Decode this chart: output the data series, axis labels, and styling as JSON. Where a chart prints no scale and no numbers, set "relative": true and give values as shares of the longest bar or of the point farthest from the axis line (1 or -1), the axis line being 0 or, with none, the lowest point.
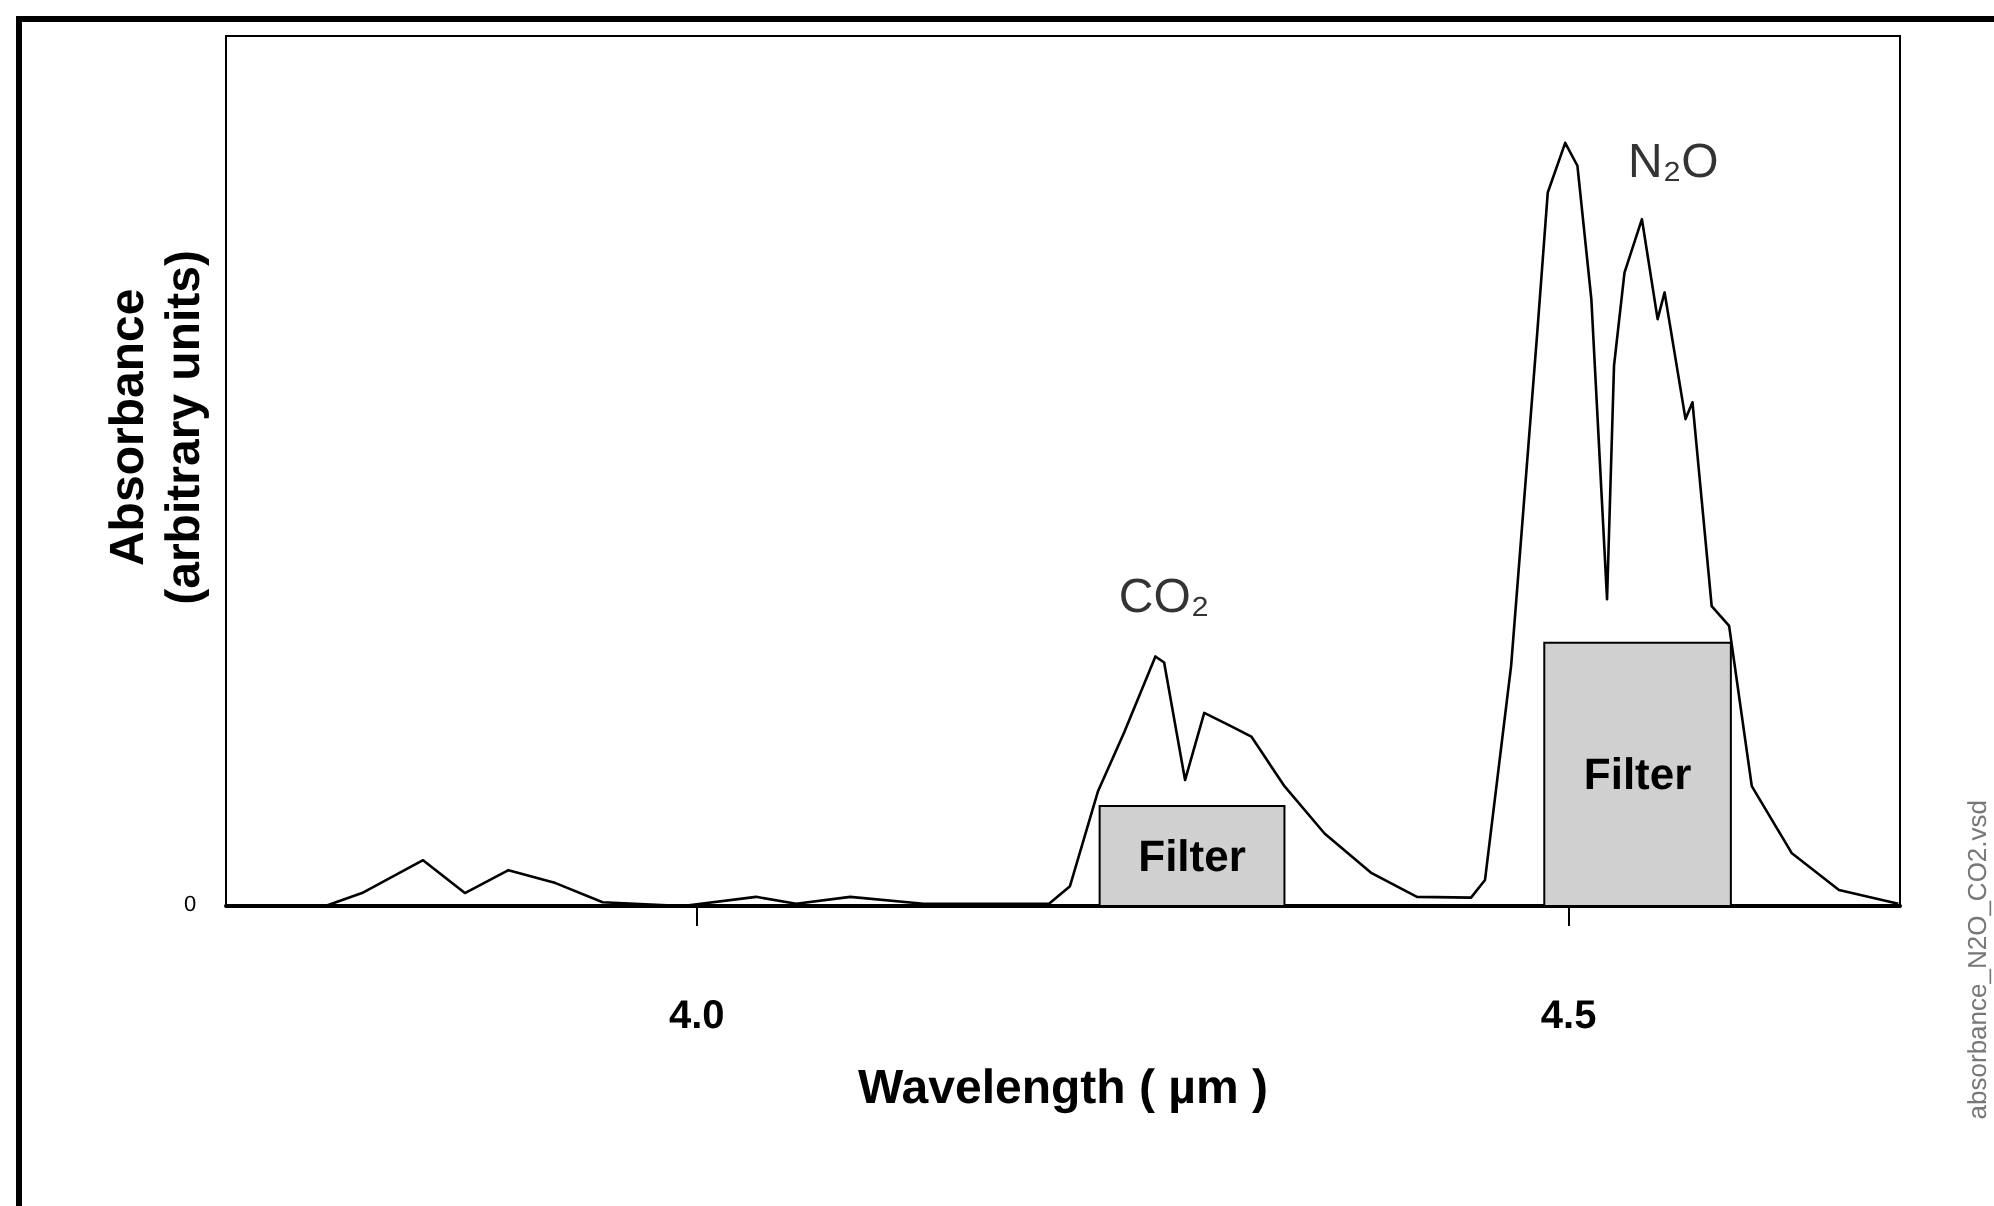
{
  "chart_data": {
    "type": "line",
    "xlabel": "Wavelength ( µm )",
    "ylabel": "Absorbance\n(arbitrary units)",
    "relative": true,
    "xlim": [
      3.73,
      4.69
    ],
    "xticks": [
      {
        "value": 4,
        "label": "4.0"
      },
      {
        "value": 4.5,
        "label": "4.5"
      }
    ],
    "series": [
      {
        "color": "#000000",
        "x": [
          3.787,
          3.808,
          3.843,
          3.867,
          3.892,
          3.919,
          3.946,
          3.992,
          4.034,
          4.057,
          4.088,
          4.13,
          4.202,
          4.214,
          4.23,
          4.245,
          4.263,
          4.268,
          4.28,
          4.291,
          4.306,
          4.318,
          4.337,
          4.36,
          4.387,
          4.413,
          4.444,
          4.452,
          4.467,
          4.482,
          4.488,
          4.498,
          4.505,
          4.513,
          4.522,
          4.526,
          4.532,
          4.542,
          4.551,
          4.555,
          4.567,
          4.571,
          4.582,
          4.592,
          4.605,
          4.628,
          4.655,
          4.689
        ],
        "values": [
          0,
          0.017,
          0.06,
          0.017,
          0.047,
          0.03,
          0.005,
          0,
          0.012,
          0.003,
          0.012,
          0.003,
          0.003,
          0.026,
          0.15,
          0.227,
          0.327,
          0.319,
          0.165,
          0.253,
          0.236,
          0.222,
          0.157,
          0.095,
          0.043,
          0.012,
          0.011,
          0.034,
          0.315,
          0.752,
          0.935,
          1,
          0.97,
          0.795,
          0.402,
          0.708,
          0.83,
          0.9,
          0.769,
          0.804,
          0.638,
          0.66,
          0.393,
          0.367,
          0.157,
          0.069,
          0.021,
          0.003
        ]
      }
    ],
    "bands": [
      {
        "axis": "x",
        "from": 4.231,
        "to": 4.337,
        "label": "Filter",
        "color": "#d0d0d0"
      },
      {
        "axis": "x",
        "from": 4.486,
        "to": 4.593,
        "label": "Filter",
        "color": "#d0d0d0"
      }
    ],
    "annotations": [
      "CO₂",
      "N₂O",
      "0",
      "absorbance_N2O_CO2.vsd"
    ],
    "grid": false,
    "marker": "none",
    "line_style": "solid"
  }
}
